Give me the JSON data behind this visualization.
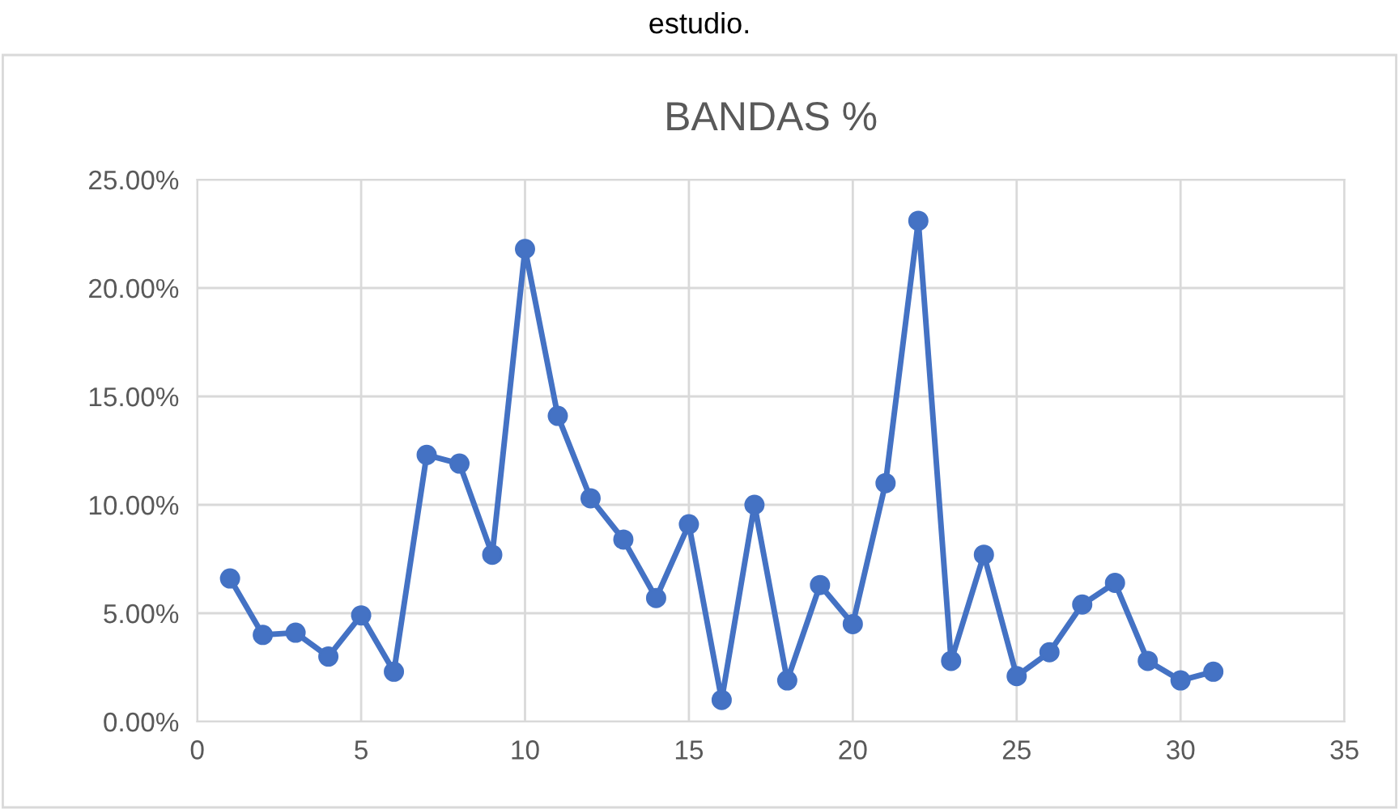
{
  "chart_data": {
    "type": "line",
    "title": "BANDAS %",
    "annotations": [
      "estudio."
    ],
    "x": [
      1,
      2,
      3,
      4,
      5,
      6,
      7,
      8,
      9,
      10,
      11,
      12,
      13,
      14,
      15,
      16,
      17,
      18,
      19,
      20,
      21,
      22,
      23,
      24,
      25,
      26,
      27,
      28,
      29,
      30,
      31
    ],
    "series": [
      {
        "color": "#4472c4",
        "values": [
          6.6,
          4.0,
          4.1,
          3.0,
          4.9,
          2.3,
          12.3,
          11.9,
          7.7,
          21.8,
          14.1,
          10.3,
          8.4,
          5.7,
          9.1,
          1.0,
          10.0,
          1.9,
          6.3,
          4.5,
          11.0,
          23.1,
          2.8,
          7.7,
          2.1,
          3.2,
          5.4,
          6.4,
          2.8,
          1.9,
          2.3
        ]
      }
    ],
    "xlim": [
      0,
      35
    ],
    "xticks": [
      0,
      5,
      10,
      15,
      20,
      25,
      30,
      35
    ],
    "ylim": [
      0,
      25
    ],
    "yticks": [
      {
        "value": 0,
        "label": "0.00%"
      },
      {
        "value": 5,
        "label": "5.00%"
      },
      {
        "value": 10,
        "label": "10.00%"
      },
      {
        "value": 15,
        "label": "15.00%"
      },
      {
        "value": 20,
        "label": "20.00%"
      },
      {
        "value": 25,
        "label": "25.00%"
      }
    ],
    "grid": true,
    "marker": "circle",
    "line_style": "solid",
    "legend": false
  }
}
